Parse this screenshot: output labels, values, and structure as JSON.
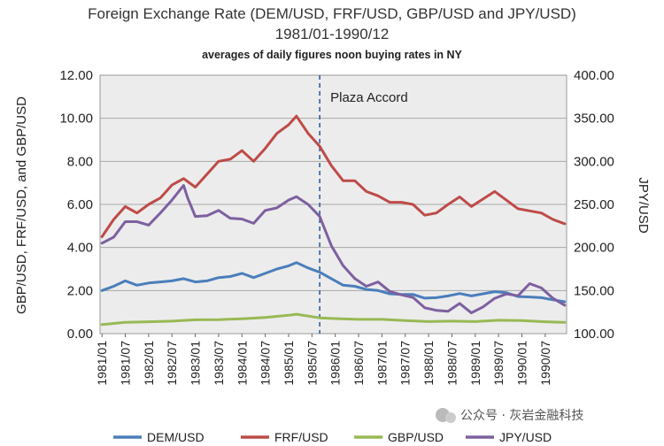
{
  "chart_data": {
    "type": "line",
    "title": "Foreign Exchange Rate (DEM/USD, FRF/USD,  GBP/USD and JPY/USD)",
    "title_line2": "1981/01-1990/12",
    "subtitle": "averages of daily figures noon buying rates in NY",
    "ylabel_left": "GBP/USD, FRF/USD,  and GBP/USD",
    "ylabel_right": "JPY/USD",
    "ylim_left": [
      0,
      12
    ],
    "ylim_right": [
      100,
      400
    ],
    "yticks_left": [
      "0.00",
      "2.00",
      "4.00",
      "6.00",
      "8.00",
      "10.00",
      "12.00"
    ],
    "yticks_right": [
      "100.00",
      "150.00",
      "200.00",
      "250.00",
      "300.00",
      "350.00",
      "400.00"
    ],
    "x_ticks": [
      "1981/01",
      "1981/07",
      "1982/01",
      "1982/07",
      "1983/01",
      "1983/07",
      "1984/01",
      "1984/07",
      "1985/01",
      "1985/07",
      "1986/01",
      "1986/07",
      "1987/01",
      "1987/07",
      "1988/01",
      "1988/07",
      "1989/01",
      "1989/07",
      "1990/01",
      "1990/07"
    ],
    "grid": true,
    "legend_position": "bottom",
    "annotation": {
      "text": "Plaza Accord",
      "x": "1985/09"
    },
    "series": [
      {
        "name": "DEM/USD",
        "axis": "left",
        "color": "#4a7ebb",
        "x": [
          "1981/01",
          "1981/04",
          "1981/07",
          "1981/10",
          "1982/01",
          "1982/04",
          "1982/07",
          "1982/10",
          "1983/01",
          "1983/04",
          "1983/07",
          "1983/10",
          "1984/01",
          "1984/04",
          "1984/07",
          "1984/10",
          "1985/01",
          "1985/03",
          "1985/06",
          "1985/09",
          "1985/12",
          "1986/03",
          "1986/06",
          "1986/09",
          "1986/12",
          "1987/03",
          "1987/06",
          "1987/09",
          "1987/12",
          "1988/03",
          "1988/06",
          "1988/09",
          "1988/12",
          "1989/03",
          "1989/06",
          "1989/09",
          "1989/12",
          "1990/03",
          "1990/06",
          "1990/09",
          "1990/12"
        ],
        "values": [
          2.0,
          2.2,
          2.45,
          2.25,
          2.35,
          2.4,
          2.45,
          2.55,
          2.4,
          2.45,
          2.6,
          2.65,
          2.8,
          2.6,
          2.8,
          3.0,
          3.15,
          3.3,
          3.05,
          2.85,
          2.55,
          2.25,
          2.2,
          2.05,
          2.0,
          1.85,
          1.82,
          1.82,
          1.65,
          1.67,
          1.75,
          1.86,
          1.75,
          1.85,
          1.95,
          1.9,
          1.72,
          1.7,
          1.67,
          1.57,
          1.48
        ]
      },
      {
        "name": "FRF/USD",
        "axis": "left",
        "color": "#be4b48",
        "x": [
          "1981/01",
          "1981/04",
          "1981/07",
          "1981/10",
          "1982/01",
          "1982/04",
          "1982/07",
          "1982/10",
          "1983/01",
          "1983/04",
          "1983/07",
          "1983/10",
          "1984/01",
          "1984/04",
          "1984/07",
          "1984/10",
          "1985/01",
          "1985/03",
          "1985/06",
          "1985/09",
          "1985/12",
          "1986/03",
          "1986/06",
          "1986/09",
          "1986/12",
          "1987/03",
          "1987/06",
          "1987/09",
          "1987/12",
          "1988/03",
          "1988/06",
          "1988/09",
          "1988/12",
          "1989/03",
          "1989/06",
          "1989/09",
          "1989/12",
          "1990/03",
          "1990/06",
          "1990/09",
          "1990/12"
        ],
        "values": [
          4.5,
          5.3,
          5.9,
          5.6,
          6.0,
          6.3,
          6.9,
          7.2,
          6.8,
          7.4,
          8.0,
          8.1,
          8.5,
          8.0,
          8.6,
          9.3,
          9.7,
          10.1,
          9.3,
          8.7,
          7.8,
          7.1,
          7.1,
          6.6,
          6.4,
          6.1,
          6.1,
          6.0,
          5.5,
          5.6,
          6.0,
          6.35,
          5.9,
          6.25,
          6.6,
          6.2,
          5.8,
          5.7,
          5.6,
          5.3,
          5.1
        ]
      },
      {
        "name": "GBP/USD",
        "axis": "left",
        "color": "#98b954",
        "x": [
          "1981/01",
          "1981/07",
          "1982/01",
          "1982/07",
          "1983/01",
          "1983/07",
          "1984/01",
          "1984/07",
          "1985/01",
          "1985/03",
          "1985/09",
          "1986/01",
          "1986/07",
          "1987/01",
          "1987/07",
          "1988/01",
          "1988/07",
          "1989/01",
          "1989/07",
          "1990/01",
          "1990/07",
          "1990/12"
        ],
        "values": [
          0.42,
          0.52,
          0.55,
          0.58,
          0.64,
          0.65,
          0.69,
          0.75,
          0.85,
          0.9,
          0.73,
          0.7,
          0.66,
          0.66,
          0.61,
          0.56,
          0.58,
          0.56,
          0.62,
          0.61,
          0.55,
          0.52
        ]
      },
      {
        "name": "JPY/USD",
        "axis": "right",
        "color": "#7d60a0",
        "x": [
          "1981/01",
          "1981/04",
          "1981/07",
          "1981/10",
          "1982/01",
          "1982/04",
          "1982/07",
          "1982/10",
          "1982/11",
          "1983/01",
          "1983/04",
          "1983/07",
          "1983/10",
          "1984/01",
          "1984/04",
          "1984/07",
          "1984/10",
          "1985/01",
          "1985/03",
          "1985/06",
          "1985/09",
          "1985/12",
          "1986/03",
          "1986/06",
          "1986/09",
          "1986/12",
          "1987/03",
          "1987/06",
          "1987/09",
          "1987/12",
          "1988/03",
          "1988/06",
          "1988/09",
          "1988/12",
          "1989/03",
          "1989/06",
          "1989/09",
          "1989/12",
          "1990/03",
          "1990/06",
          "1990/09",
          "1990/12"
        ],
        "values": [
          205,
          212,
          230,
          230,
          226,
          240,
          255,
          272,
          258,
          236,
          237,
          243,
          234,
          233,
          228,
          243,
          246,
          255,
          259,
          250,
          236,
          202,
          179,
          164,
          155,
          160,
          149,
          145,
          142,
          130,
          127,
          126,
          135,
          124,
          131,
          141,
          146,
          144,
          158,
          153,
          141,
          133
        ]
      }
    ]
  },
  "watermark": "公众号 · 灰岩金融科技"
}
